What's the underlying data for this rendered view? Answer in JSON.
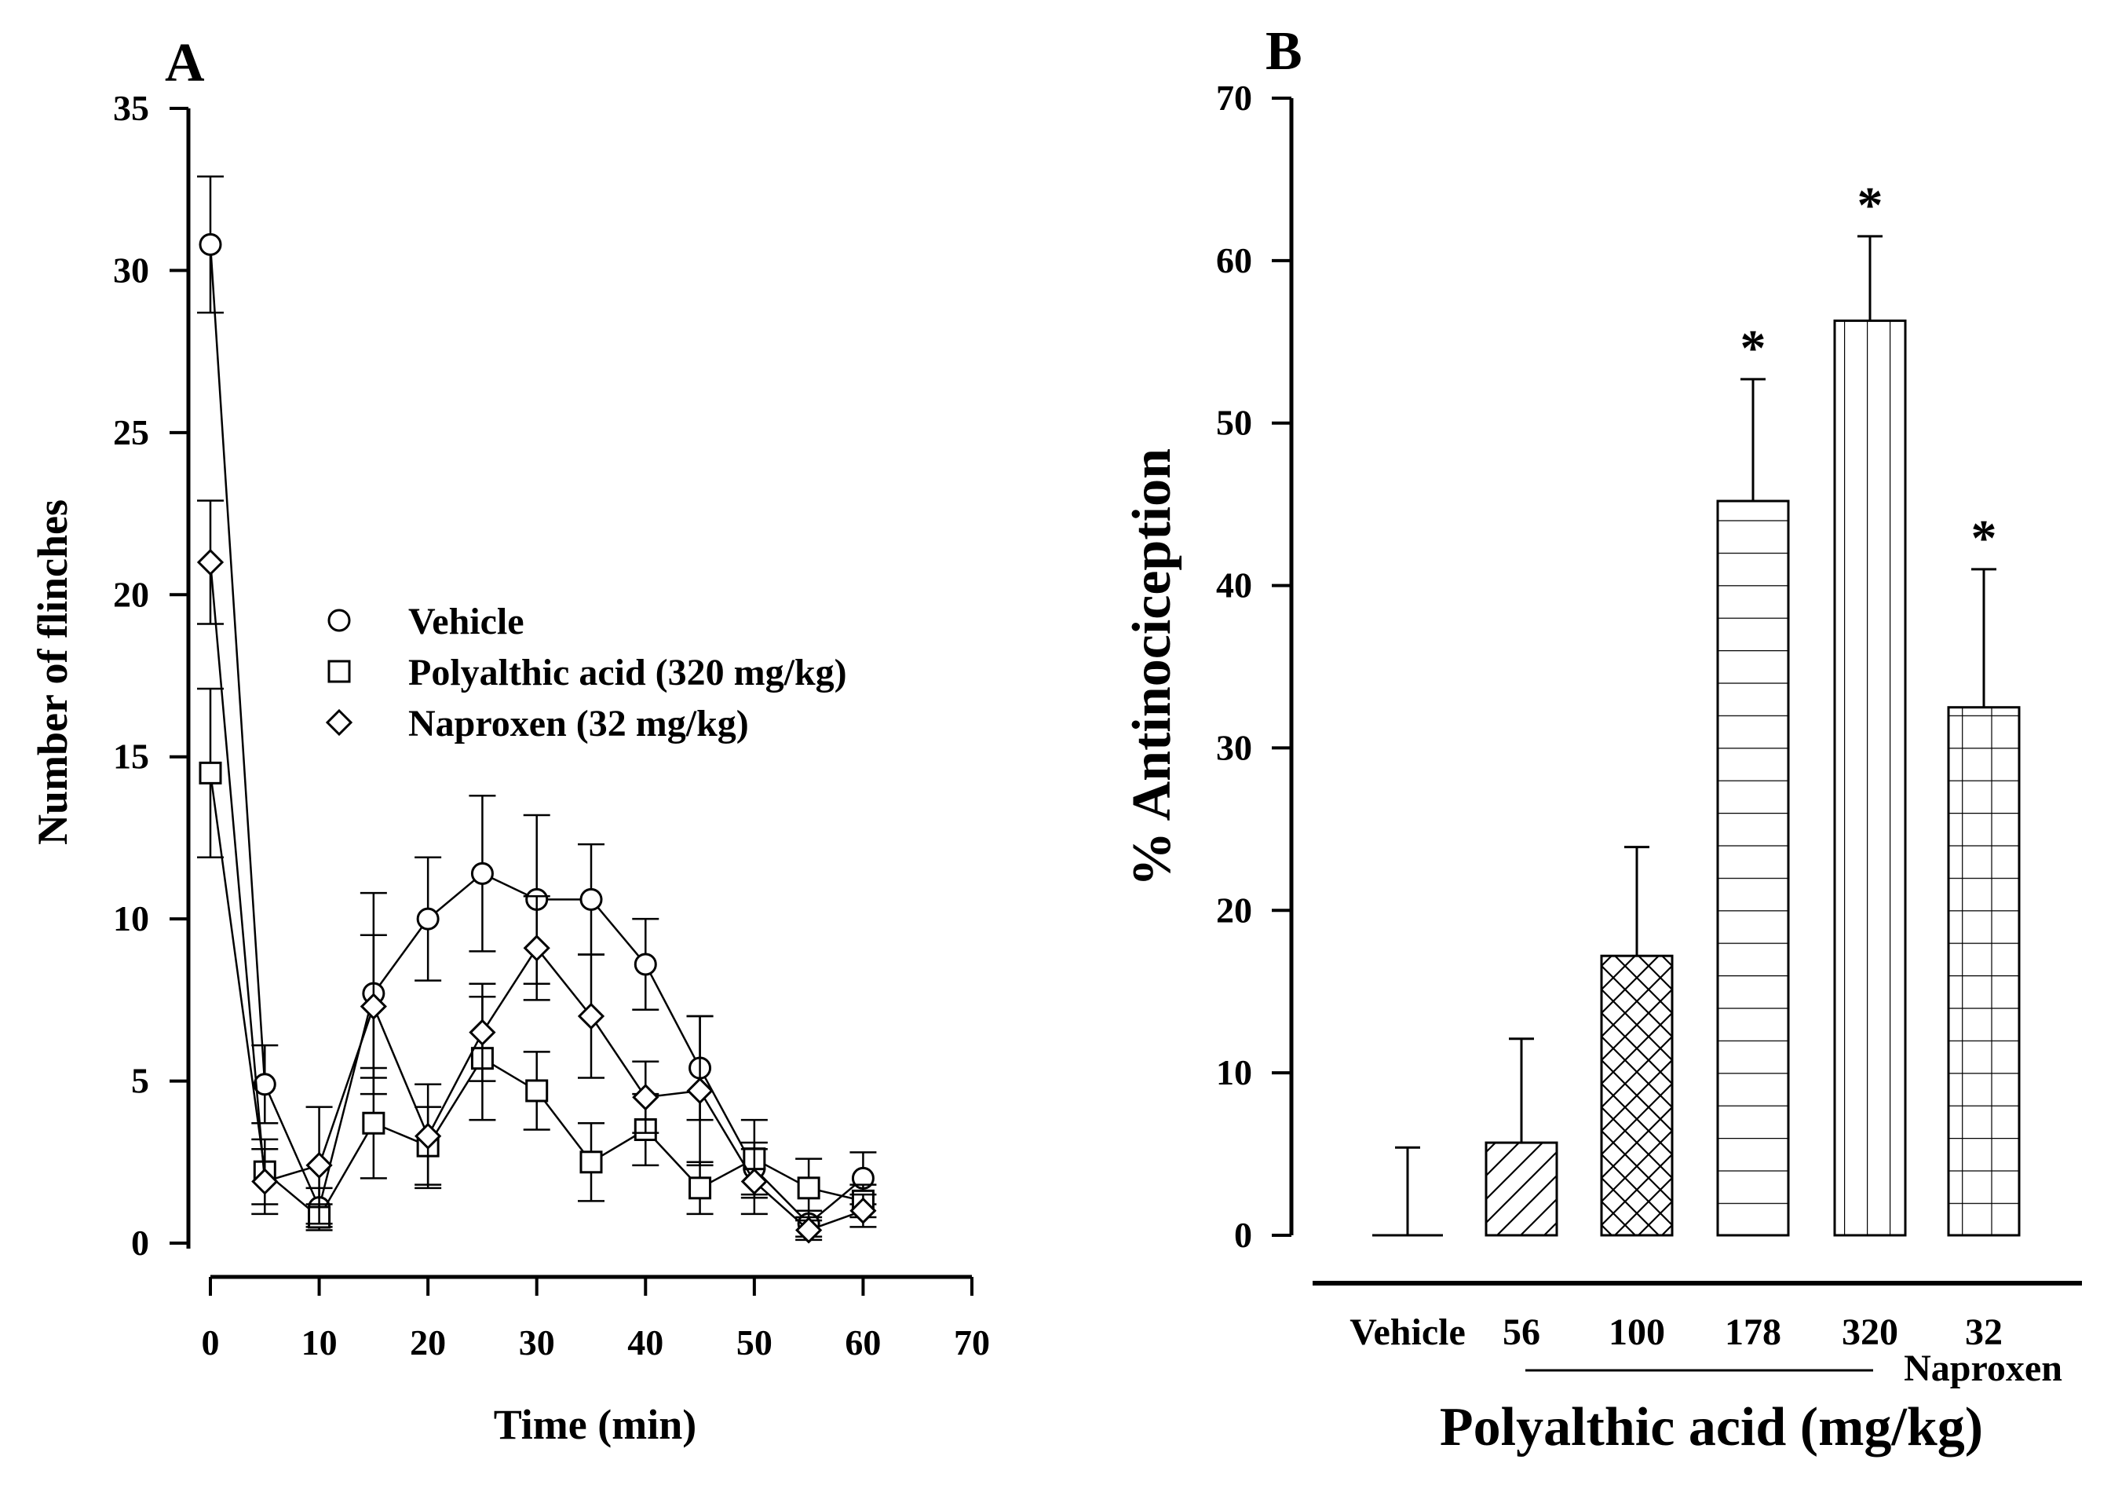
{
  "chart_data": [
    {
      "type": "line",
      "panel_label": "A",
      "title": "",
      "xlabel": "Time (min)",
      "ylabel": "Number of flinches",
      "xlim": [
        0,
        70
      ],
      "ylim": [
        0,
        35
      ],
      "xticks": [
        "0",
        "10",
        "20",
        "30",
        "40",
        "50",
        "60",
        "70"
      ],
      "yticks": [
        "0",
        "5",
        "10",
        "15",
        "20",
        "25",
        "30",
        "35"
      ],
      "grid": false,
      "legend_position": "center",
      "series": [
        {
          "name": "Vehicle",
          "marker": "circle",
          "x": [
            0,
            5,
            10,
            15,
            20,
            25,
            30,
            35,
            40,
            45,
            50,
            55,
            60
          ],
          "y": [
            30.8,
            4.9,
            1.1,
            7.7,
            10.0,
            11.4,
            10.6,
            10.6,
            8.6,
            5.4,
            2.3,
            0.6,
            2.0
          ],
          "error": [
            2.1,
            1.2,
            0.6,
            3.1,
            1.9,
            2.4,
            2.6,
            1.7,
            1.4,
            1.6,
            0.8,
            0.4,
            0.8
          ]
        },
        {
          "name": "Polyalthic acid (320 mg/kg)",
          "marker": "square",
          "x": [
            0,
            5,
            10,
            15,
            20,
            25,
            30,
            35,
            40,
            45,
            50,
            55,
            60
          ],
          "y": [
            14.5,
            2.2,
            0.8,
            3.7,
            3.0,
            5.7,
            4.7,
            2.5,
            3.5,
            1.7,
            2.6,
            1.7,
            1.3
          ],
          "error": [
            2.6,
            1.0,
            0.4,
            1.7,
            1.2,
            1.9,
            1.2,
            1.2,
            1.1,
            0.8,
            1.2,
            0.9,
            0.5
          ]
        },
        {
          "name": "Naproxen (32 mg/kg)",
          "marker": "diamond",
          "x": [
            0,
            5,
            10,
            15,
            20,
            25,
            30,
            35,
            40,
            45,
            50,
            55,
            60
          ],
          "y": [
            21.0,
            1.9,
            2.4,
            7.3,
            3.3,
            6.5,
            9.1,
            7.0,
            4.5,
            4.7,
            1.9,
            0.4,
            1.0
          ],
          "error": [
            1.9,
            1.0,
            1.8,
            2.2,
            1.6,
            1.5,
            1.6,
            1.9,
            1.1,
            2.3,
            1.0,
            0.3,
            0.5
          ]
        }
      ]
    },
    {
      "type": "bar",
      "panel_label": "B",
      "title": "",
      "xlabel": "Polyalthic acid (mg/kg)",
      "ylabel": "% Antinociception",
      "ylim": [
        0,
        70
      ],
      "yticks": [
        "0",
        "10",
        "20",
        "30",
        "40",
        "50",
        "60",
        "70"
      ],
      "grid": false,
      "categories": [
        "Vehicle",
        "56",
        "100",
        "178",
        "320",
        "32"
      ],
      "values": [
        0,
        5.7,
        17.2,
        45.2,
        56.3,
        32.5
      ],
      "error": [
        5.4,
        6.4,
        6.7,
        7.5,
        5.2,
        8.5
      ],
      "patterns": [
        "none",
        "diagonal",
        "crosshatch",
        "horizontal",
        "vertical",
        "grid"
      ],
      "significance": [
        "",
        "",
        "",
        "*",
        "*",
        "*"
      ],
      "naproxen_label": "Naproxen"
    }
  ]
}
